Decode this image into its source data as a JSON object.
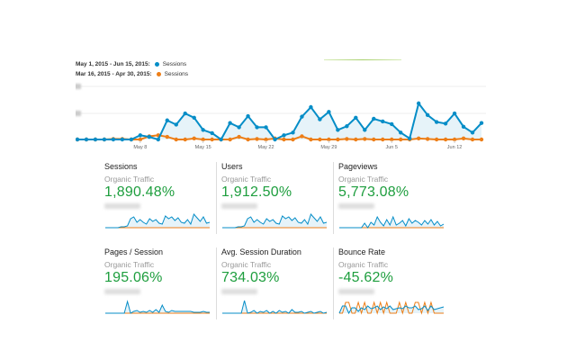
{
  "legend": [
    {
      "range": "May 1, 2015 - Jun 15, 2015:",
      "metric": "Sessions",
      "color": "#058dc7"
    },
    {
      "range": "Mar 16, 2015 - Apr 30, 2015:",
      "metric": "Sessions",
      "color": "#ed7e17"
    }
  ],
  "chart_data": {
    "type": "line",
    "x_ticks": [
      "May 8",
      "May 15",
      "May 22",
      "May 29",
      "Jun 5",
      "Jun 12"
    ],
    "series": [
      {
        "name": "Sessions (May 1 - Jun 15, 2015)",
        "color": "#058dc7",
        "values": [
          0,
          0,
          0,
          0,
          0,
          0,
          0,
          8,
          5,
          0,
          36,
          28,
          49,
          41,
          18,
          12,
          0,
          31,
          23,
          44,
          23,
          23,
          0,
          8,
          13,
          43,
          61,
          38,
          52,
          18,
          25,
          41,
          18,
          39,
          34,
          29,
          13,
          2,
          68,
          46,
          33,
          30,
          49,
          24,
          13,
          31
        ]
      },
      {
        "name": "Sessions (Mar 16 - Apr 30, 2015)",
        "color": "#ed7e17",
        "values": [
          0,
          0,
          0,
          0,
          1,
          1,
          0,
          0,
          6,
          8,
          5,
          0,
          0,
          2,
          0,
          0,
          0,
          0,
          5,
          0,
          1,
          0,
          2,
          0,
          0,
          6,
          0,
          0,
          0,
          0,
          1,
          0,
          1,
          0,
          0,
          0,
          0,
          0,
          2,
          1,
          0,
          0,
          0,
          2,
          0,
          0
        ]
      }
    ],
    "ylim": [
      0,
      100
    ]
  },
  "cards": [
    {
      "title": "Sessions",
      "segment": "Organic Traffic",
      "value": "1,890.48%",
      "spark": [
        0,
        0,
        0,
        0,
        0,
        1,
        1,
        2,
        10,
        12,
        6,
        9,
        6,
        4,
        10,
        7,
        9,
        5,
        4,
        13,
        10,
        12,
        8,
        11,
        6,
        5,
        9,
        4,
        15,
        11,
        7,
        12,
        5,
        6
      ]
    },
    {
      "title": "Users",
      "segment": "Organic Traffic",
      "value": "1,912.50%",
      "spark": [
        0,
        0,
        0,
        0,
        0,
        1,
        1,
        2,
        10,
        12,
        6,
        9,
        6,
        4,
        10,
        7,
        9,
        5,
        4,
        13,
        10,
        12,
        8,
        11,
        6,
        5,
        9,
        4,
        15,
        11,
        7,
        12,
        5,
        6
      ]
    },
    {
      "title": "Pageviews",
      "segment": "Organic Traffic",
      "value": "5,773.08%",
      "spark": [
        0,
        0,
        0,
        0,
        0,
        0,
        0,
        0,
        5,
        0,
        6,
        3,
        12,
        6,
        2,
        9,
        3,
        12,
        3,
        5,
        8,
        2,
        10,
        5,
        8,
        6,
        3,
        8,
        4,
        9,
        3,
        7,
        2,
        4
      ]
    },
    {
      "title": "Pages / Session",
      "segment": "Organic Traffic",
      "value": "195.06%",
      "spark": [
        0,
        0,
        0,
        0,
        0,
        0,
        0,
        13,
        0,
        2,
        3,
        1,
        2,
        1,
        3,
        1,
        4,
        1,
        9,
        2,
        1,
        3,
        2,
        2,
        2,
        2,
        2,
        2,
        1,
        1,
        1,
        2,
        1,
        1
      ]
    },
    {
      "title": "Avg. Session Duration",
      "segment": "Organic Traffic",
      "value": "734.03%",
      "spark": [
        0,
        0,
        0,
        0,
        0,
        0,
        0,
        14,
        0,
        1,
        3,
        0,
        2,
        1,
        3,
        0,
        2,
        0,
        3,
        1,
        2,
        0,
        4,
        1,
        1,
        2,
        0,
        1,
        2,
        0,
        1,
        2,
        0,
        1
      ]
    },
    {
      "title": "Bounce Rate",
      "segment": "Organic Traffic",
      "value": "-45.62%",
      "spark": [
        0,
        8,
        8,
        0,
        6,
        6,
        2,
        6,
        4,
        8,
        5,
        6,
        8,
        4,
        7,
        5,
        8,
        4,
        5,
        6,
        5,
        8,
        6,
        6,
        8,
        4,
        5,
        8,
        3,
        8,
        4,
        5,
        6,
        7
      ],
      "spark2": [
        0,
        0,
        12,
        12,
        0,
        0,
        12,
        0,
        12,
        0,
        0,
        12,
        0,
        12,
        0,
        12,
        0,
        0,
        0,
        12,
        0,
        12,
        0,
        0,
        12,
        12,
        0,
        12,
        0,
        12,
        0,
        0,
        0,
        0
      ]
    }
  ]
}
